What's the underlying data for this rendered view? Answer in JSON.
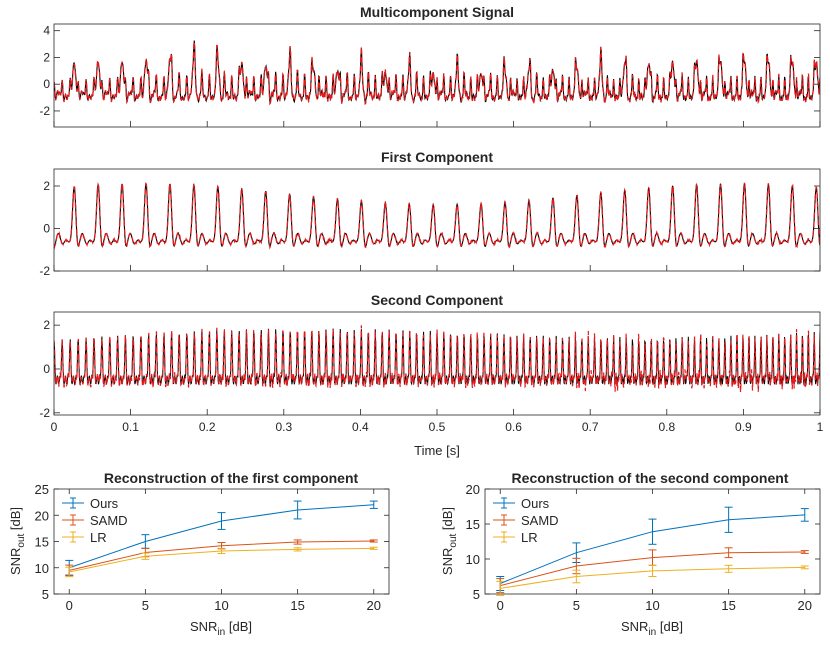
{
  "colors": {
    "reference": "#000000",
    "reconstruction": "#e31a1c",
    "ours": "#0072bd",
    "samd": "#d95319",
    "lr": "#edb120",
    "axis": "#262626"
  },
  "time_plots": {
    "xlabel": "Time [s]",
    "xticks": [
      "0",
      "0.1",
      "0.2",
      "0.3",
      "0.4",
      "0.5",
      "0.6",
      "0.7",
      "0.8",
      "0.9",
      "1"
    ],
    "panels": [
      {
        "key": "multi",
        "title": "Multicomponent Signal",
        "yticks": [
          "4",
          "2",
          "0",
          "-2"
        ]
      },
      {
        "key": "first",
        "title": "First Component",
        "yticks": [
          "2",
          "0",
          "-2"
        ]
      },
      {
        "key": "second",
        "title": "Second Component",
        "yticks": [
          "2",
          "0",
          "-2"
        ]
      }
    ]
  },
  "snr_plots": {
    "xlabel_main": "SNR",
    "xlabel_sub": "in",
    "xlabel_unit": " [dB]",
    "ylabel_main": "SNR",
    "ylabel_sub": "out",
    "ylabel_unit": " [dB]",
    "panels": [
      {
        "title": "Reconstruction of the first component",
        "yticks": [
          "25",
          "20",
          "15",
          "10",
          "5"
        ],
        "xticks": [
          "0",
          "5",
          "10",
          "15",
          "20"
        ]
      },
      {
        "title": "Reconstruction of the second component",
        "yticks": [
          "20",
          "15",
          "10",
          "5"
        ],
        "xticks": [
          "0",
          "5",
          "10",
          "15",
          "20"
        ]
      }
    ],
    "legend": [
      "Ours",
      "SAMD",
      "LR"
    ]
  },
  "chart_data": [
    {
      "type": "line",
      "title": "Multicomponent Signal",
      "xlabel": "Time [s]",
      "ylabel": "",
      "xlim": [
        0,
        1
      ],
      "ylim": [
        -3.2,
        4.5
      ],
      "series": [
        {
          "name": "Reference (black)",
          "description_values": "sum of first and second components"
        },
        {
          "name": "Reconstruction (red dashed)",
          "description_values": "estimate closely tracking reference"
        }
      ]
    },
    {
      "type": "line",
      "title": "First Component",
      "xlabel": "Time [s]",
      "ylabel": "",
      "xlim": [
        0,
        1
      ],
      "ylim": [
        -2,
        2.8
      ],
      "fundamental_cycles": 32,
      "peak_range": [
        1.8,
        2.7
      ],
      "trough_range": [
        -1.3,
        -0.6
      ]
    },
    {
      "type": "line",
      "title": "Second Component",
      "xlabel": "Time [s]",
      "ylabel": "",
      "xlim": [
        0,
        1
      ],
      "ylim": [
        -2.1,
        2.6
      ],
      "cycles_approx": 105,
      "amplitude_range": [
        1.1,
        2.3
      ]
    },
    {
      "type": "line",
      "title": "Reconstruction of the first component",
      "xlabel": "SNR_in [dB]",
      "ylabel": "SNR_out [dB]",
      "x": [
        0,
        5,
        10,
        15,
        20
      ],
      "xlim": [
        -1,
        21
      ],
      "ylim": [
        5,
        25
      ],
      "series": [
        {
          "name": "Ours",
          "values": [
            10.0,
            15.0,
            18.9,
            21.0,
            22.0
          ],
          "errors": [
            1.4,
            1.3,
            1.6,
            1.7,
            0.7
          ]
        },
        {
          "name": "SAMD",
          "values": [
            9.5,
            12.9,
            14.2,
            14.9,
            15.1
          ],
          "errors": [
            1.0,
            0.8,
            0.6,
            0.4,
            0.2
          ]
        },
        {
          "name": "LR",
          "values": [
            9.2,
            12.2,
            13.2,
            13.5,
            13.7
          ],
          "errors": [
            0.9,
            0.6,
            0.5,
            0.3,
            0.2
          ]
        }
      ]
    },
    {
      "type": "line",
      "title": "Reconstruction of the second component",
      "xlabel": "SNR_in [dB]",
      "ylabel": "SNR_out [dB]",
      "x": [
        0,
        5,
        10,
        15,
        20
      ],
      "xlim": [
        -1,
        21
      ],
      "ylim": [
        5,
        20
      ],
      "series": [
        {
          "name": "Ours",
          "values": [
            6.5,
            10.9,
            13.9,
            15.6,
            16.3
          ],
          "errors": [
            1.0,
            1.4,
            1.8,
            1.8,
            0.9
          ]
        },
        {
          "name": "SAMD",
          "values": [
            6.2,
            9.0,
            10.2,
            10.9,
            11.0
          ],
          "errors": [
            1.0,
            1.1,
            1.1,
            0.7,
            0.2
          ]
        },
        {
          "name": "LR",
          "values": [
            5.8,
            7.5,
            8.3,
            8.6,
            8.8
          ],
          "errors": [
            1.0,
            0.9,
            0.8,
            0.5,
            0.2
          ]
        }
      ]
    }
  ]
}
